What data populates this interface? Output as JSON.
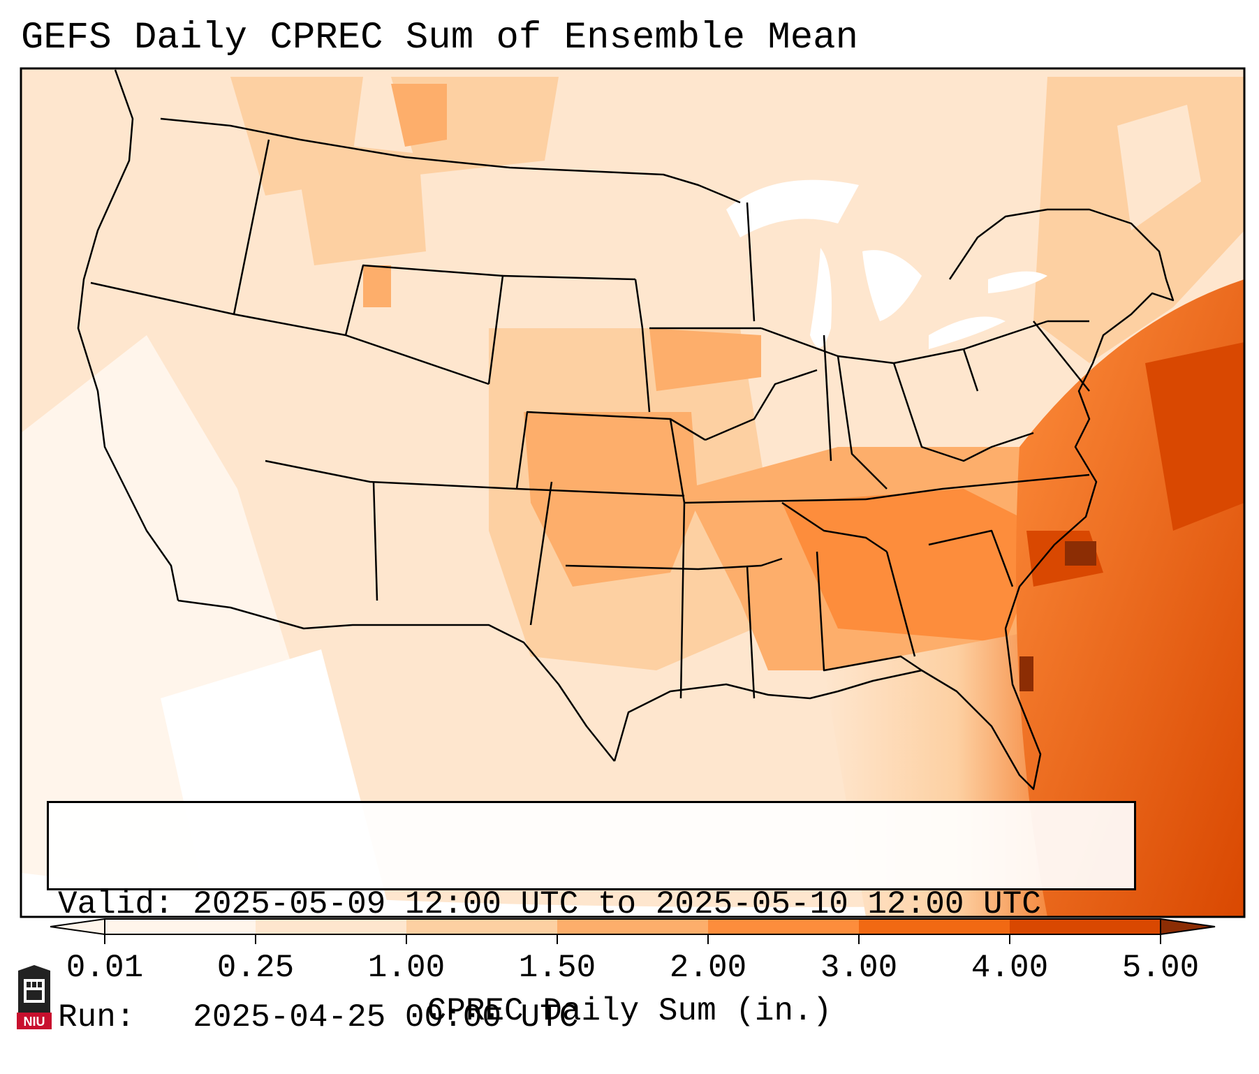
{
  "title": "GEFS Daily CPREC Sum of Ensemble Mean",
  "valid_label": "Valid:",
  "valid_value": "2025-05-09 12:00 UTC to 2025-05-10 12:00 UTC",
  "run_label": "Run:",
  "run_value": "2025-04-25 00:00 UTC",
  "colorbar": {
    "label": "CPREC Daily Sum (in.)",
    "ticks": [
      "0.01",
      "0.25",
      "1.00",
      "1.50",
      "2.00",
      "3.00",
      "4.00",
      "5.00"
    ],
    "colors": [
      "#fff5eb",
      "#fee6ce",
      "#fdd0a2",
      "#fdae6b",
      "#fd8d3c",
      "#f16913",
      "#d94801",
      "#8c2d04"
    ],
    "extend": "both"
  },
  "logo": {
    "text": "NIU",
    "icon": "niu-castle-logo"
  }
}
